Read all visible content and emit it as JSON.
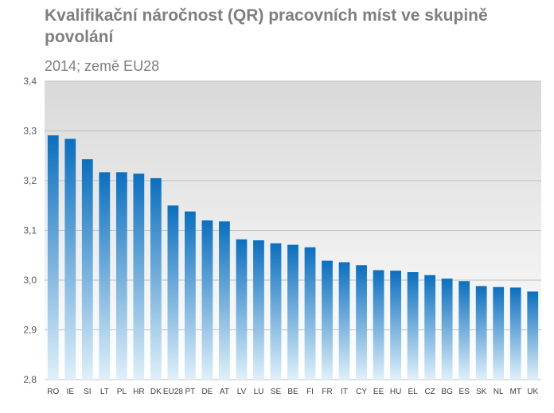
{
  "title": "Kvalifikační náročnost (QR)  pracovních míst ve skupině povolání",
  "subtitle": "2014; země EU28",
  "colors": {
    "bar_top": "#0a6fc0",
    "bar_bottom": "#dff0fa",
    "plot_bg_top": "#d9d9d9",
    "plot_bg_bottom": "#ffffff",
    "grid": "#bfbfbf",
    "text": "#7f7f7f"
  },
  "chart_data": {
    "type": "bar",
    "categories": [
      "RO",
      "IE",
      "SI",
      "LT",
      "PL",
      "HR",
      "DK",
      "EU28",
      "PT",
      "DE",
      "AT",
      "LV",
      "LU",
      "SE",
      "BE",
      "FI",
      "FR",
      "IT",
      "CY",
      "EE",
      "HU",
      "EL",
      "CZ",
      "BG",
      "ES",
      "SK",
      "NL",
      "MT",
      "UK"
    ],
    "values": [
      3.291,
      3.284,
      3.243,
      3.217,
      3.217,
      3.214,
      3.205,
      3.15,
      3.138,
      3.12,
      3.118,
      3.082,
      3.08,
      3.074,
      3.071,
      3.066,
      3.039,
      3.036,
      3.03,
      3.02,
      3.019,
      3.016,
      3.01,
      3.003,
      2.998,
      2.988,
      2.986,
      2.985,
      2.977
    ],
    "ylim": [
      2.8,
      3.4
    ],
    "yticks": [
      "2,8",
      "2,9",
      "3,0",
      "3,1",
      "3,2",
      "3,3",
      "3,4"
    ],
    "ytick_values": [
      2.8,
      2.9,
      3.0,
      3.1,
      3.2,
      3.3,
      3.4
    ],
    "grid": true,
    "legend": "none",
    "xlabel": "",
    "ylabel": ""
  }
}
